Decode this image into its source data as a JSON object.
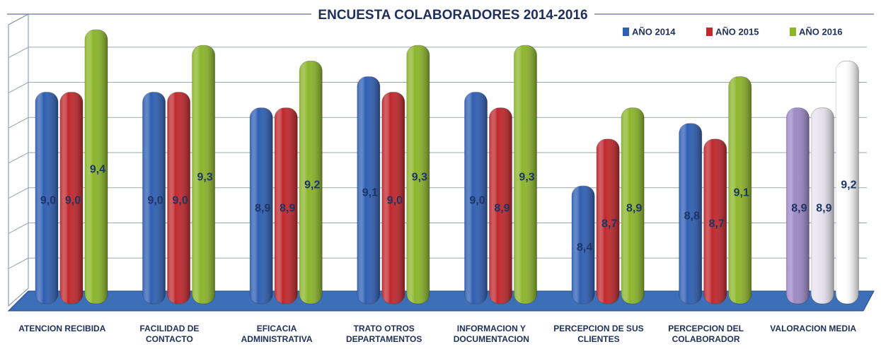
{
  "chart_data": {
    "type": "bar",
    "title": "ENCUESTA COLABORADORES 2014-2016",
    "categories": [
      "ATENCION RECIBIDA",
      "FACILIDAD DE CONTACTO",
      "EFICACIA ADMINISTRATIVA",
      "TRATO OTROS DEPARTAMENTOS",
      "INFORMACION Y DOCUMENTACION",
      "PERCEPCION DE SUS CLIENTES",
      "PERCEPCION DEL COLABORADOR",
      "VALORACION MEDIA"
    ],
    "series": [
      {
        "name": "AÑO 2014",
        "color": "#2f5fb3",
        "values": [
          9.0,
          9.0,
          8.9,
          9.1,
          9.0,
          8.4,
          8.8,
          8.9
        ],
        "value_labels": [
          "9,0",
          "9,0",
          "8,9",
          "9,1",
          "9,0",
          "8,4",
          "8,8",
          "8,9"
        ]
      },
      {
        "name": "AÑO 2015",
        "color": "#c0282d",
        "values": [
          9.0,
          9.0,
          8.9,
          9.0,
          8.9,
          8.7,
          8.7,
          8.9
        ],
        "value_labels": [
          "9,0",
          "9,0",
          "8,9",
          "9,0",
          "8,9",
          "8,7",
          "8,7",
          "8,9"
        ]
      },
      {
        "name": "AÑO 2016",
        "color": "#8bb52a",
        "values": [
          9.4,
          9.3,
          9.2,
          9.3,
          9.3,
          8.9,
          9.1,
          9.2
        ],
        "value_labels": [
          "9,4",
          "9,3",
          "9,2",
          "9,3",
          "9,3",
          "8,9",
          "9,1",
          "9,2"
        ]
      }
    ],
    "last_category_colors": [
      "#9d88c6",
      "#e6e2ef",
      "#ffffff"
    ],
    "ylim": [
      7.7,
      9.5
    ],
    "legend": "top-right"
  }
}
